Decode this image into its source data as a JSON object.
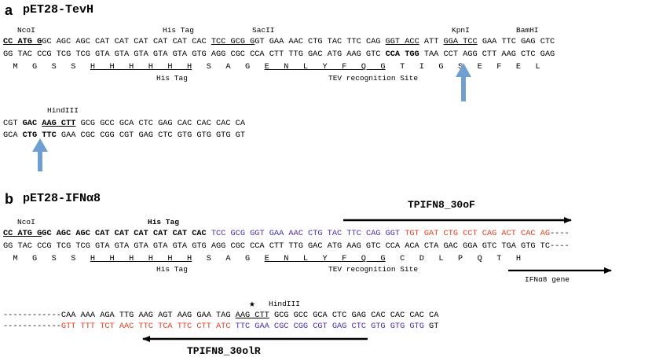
{
  "panel_a": {
    "letter": "a",
    "title": "pET28-TevH",
    "labels": {
      "ncoi": "NcoI",
      "his_tag": "His Tag",
      "sacii": "SacII",
      "kpni": "KpnI",
      "bamhi": "BamHI",
      "his_tag_below": "His Tag",
      "tev_site": "TEV recognition Site",
      "hindiii": "HindIII"
    },
    "row1": {
      "top_ncoi": "CC ATG G",
      "top_a": "GC AGC AGC CAT CAT CAT CAT CAT CAC ",
      "top_sacii": "TCC GCG G",
      "top_b": "GT GAA AAC CTG TAC TTC CAG ",
      "top_kpni": "GGT ACC",
      "top_c": " ATT ",
      "top_bamhi": "GGA TCC",
      "top_d": " GAA TTC GAG CTC",
      "bottom_a": "GG TAC CCG TCG TCG GTA GTA GTA GTA GTA GTG AGG CGC CCA CTT TTG GAC ATG AAG GTC ",
      "bottom_kpn": "CCA TGG",
      "bottom_b": " TAA CCT AGG CTT AAG CTC GAG",
      "aa_a": "  M   G   S   S   ",
      "aa_his": "H   H   H   H   H   H",
      "aa_b": "   S   A   G   ",
      "aa_tev": "E   N   L   Y   F   Q   G",
      "aa_c": "   T   I   G   S   E   F   E   L"
    },
    "row2": {
      "top_a": "CGT ",
      "top_b": "GAC ",
      "top_hind": "AAG CTT",
      "top_c": " GCG GCC GCA CTC GAG CAC CAC CAC CA",
      "bottom_a": "GCA ",
      "bottom_b": "CTG TTC",
      "bottom_c": " GAA CGC CGG CGT GAG CTC GTG GTG GTG GT"
    }
  },
  "panel_b": {
    "letter": "b",
    "title": "pET28-IFNα8",
    "labels": {
      "ncoi": "NcoI",
      "his_tag": "His Tag",
      "his_tag_below": "His Tag",
      "tev_site": "TEV recognition Site",
      "ifn_gene": "IFNα8 gene",
      "primer_f": "TPIFN8_30oF",
      "primer_r": "TPIFN8_30olR",
      "hindiii": "HindIII",
      "star": "★"
    },
    "row1": {
      "top_ncoi": "CC ATG G",
      "top_a": "GC AGC AGC CAT CAT CAT CAT CAT CAC ",
      "top_purple": "TCC GCG GGT GAA AAC CTG TAC TTC CAG GGT ",
      "top_red": "TGT GAT CTG CCT CAG ACT CAC AG",
      "top_dash": "----",
      "bottom": "GG TAC CCG TCG TCG GTA GTA GTA GTA GTA GTG AGG CGC CCA CTT TTG GAC ATG AAG GTC CCA ACA CTA GAC GGA GTC TGA GTG TC----",
      "aa_a": "  M   G   S   S   ",
      "aa_his": "H   H   H   H   H   H",
      "aa_b": "   S   A   G   ",
      "aa_tev": "E   N   L   Y   F   Q   G",
      "aa_c": "   C   D   L   P   Q   T   H"
    },
    "row2": {
      "top_dash": "------------",
      "top_a": "CAA AAA AGA TTG AAG AGT AAG GAA TAG ",
      "top_hind": "AAG CTT",
      "top_b": " GCG GCC GCA CTC GAG CAC CAC CAC CA",
      "bottom_dash": "------------",
      "bottom_red": "GTT TTT TCT AAC TTC TCA TTC CTT ATC ",
      "bottom_purple": "TTC GAA CGC CGG CGT GAG CTC GTG GTG GTG",
      "bottom_end": " GT"
    }
  },
  "colors": {
    "arrow_blue": "#6f9fd1",
    "purple": "#4a2aa8",
    "red": "#e23b1e",
    "black": "#000000"
  }
}
